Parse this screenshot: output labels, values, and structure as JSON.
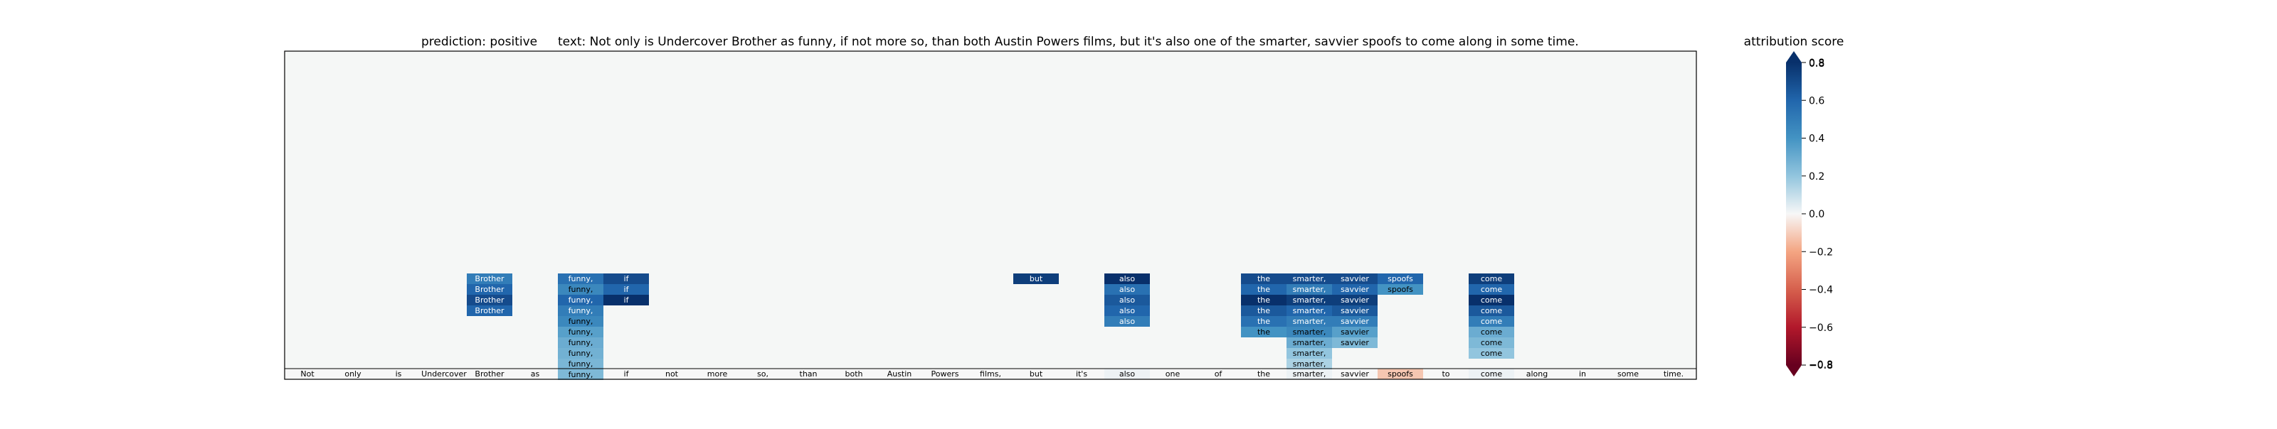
{
  "chart_data": {
    "type": "heatmap",
    "title_prediction": "prediction:  positive",
    "title_text": "text:  Not only is Undercover Brother as funny, if not more so, than both Austin Powers films, but it's also one of the smarter, savvier spoofs to come along in some time.",
    "tokens": [
      "Not",
      "only",
      "is",
      "Undercover",
      "Brother",
      "as",
      "funny,",
      "if",
      "not",
      "more",
      "so,",
      "than",
      "both",
      "Austin",
      "Powers",
      "films,",
      "but",
      "it's",
      "also",
      "one",
      "of",
      "the",
      "smarter,",
      "savvier",
      "spoofs",
      "to",
      "come",
      "along",
      "in",
      "some",
      "time."
    ],
    "token_row_scores": [
      0,
      0,
      0,
      0,
      0,
      0,
      0.05,
      0,
      0,
      0,
      0,
      0,
      0,
      0,
      0,
      0,
      0,
      0,
      0.02,
      0,
      0,
      0,
      0.02,
      0,
      -0.12,
      0,
      0.02,
      0,
      0,
      0,
      0
    ],
    "attribution_stacks": [
      {
        "token": "Brother",
        "scores": [
          0.5,
          0.6,
          0.7,
          0.6
        ]
      },
      {
        "token": "funny,",
        "scores": [
          0.55,
          0.45,
          0.6,
          0.5,
          0.45,
          0.35,
          0.3,
          0.28,
          0.26,
          0.25
        ]
      },
      {
        "token": "if",
        "scores": [
          0.7,
          0.6,
          0.85
        ]
      },
      {
        "token": "but",
        "scores": [
          0.75
        ]
      },
      {
        "token": "also",
        "scores": [
          0.8,
          0.55,
          0.65,
          0.6,
          0.5
        ]
      },
      {
        "token": "the",
        "scores": [
          0.7,
          0.6,
          0.8,
          0.65,
          0.55,
          0.4
        ]
      },
      {
        "token": "smarter,",
        "scores": [
          0.7,
          0.5,
          0.75,
          0.6,
          0.5,
          0.45,
          0.3,
          0.2,
          0.15
        ]
      },
      {
        "token": "savvier",
        "scores": [
          0.7,
          0.6,
          0.75,
          0.65,
          0.5,
          0.35,
          0.25
        ]
      },
      {
        "token": "spoofs",
        "scores": [
          0.6,
          0.4
        ]
      },
      {
        "token": "come",
        "scores": [
          0.75,
          0.6,
          0.8,
          0.65,
          0.5,
          0.3,
          0.25,
          0.2
        ]
      }
    ],
    "colorbar": {
      "label": "attribution score",
      "range": [
        -0.8,
        0.8
      ],
      "ticks": [
        0.8,
        0.6,
        0.4,
        0.2,
        0.0,
        -0.2,
        -0.4,
        -0.6,
        -0.8
      ],
      "tick_labels": [
        "0.8",
        "0.6",
        "0.4",
        "0.2",
        "0.0",
        "−0.2",
        "−0.4",
        "−0.6",
        "−0.8"
      ],
      "overlap_labels": [
        "0.8",
        "−0.8"
      ],
      "colormap": "RdBu"
    },
    "background_color": "#f5f7f6"
  }
}
